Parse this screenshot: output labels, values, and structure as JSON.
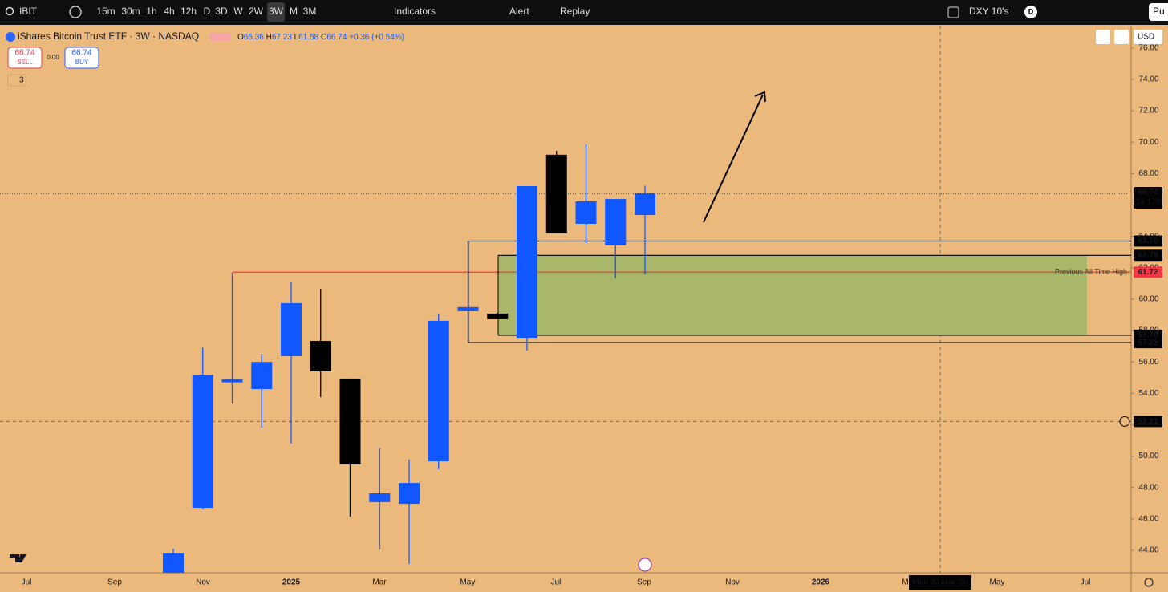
{
  "toolbar": {
    "symbol": "IBIT",
    "intervals": [
      "15m",
      "30m",
      "1h",
      "4h",
      "12h",
      "D",
      "3D",
      "W",
      "2W",
      "3W",
      "M",
      "3M"
    ],
    "indicators": "Indicators",
    "alert": "Alert",
    "replay": "Replay",
    "compare": "DXY 10's",
    "avatar": "D",
    "publish": "Pu"
  },
  "legend": {
    "title": "iShares Bitcoin Trust ETF · 3W · NASDAQ",
    "open_label": "O",
    "high_label": "H",
    "low_label": "L",
    "close_label": "C",
    "change": "+0.36 (+0.54%)",
    "indicator_count": "3"
  },
  "trade": {
    "sell_price": "66.74",
    "sell": "SELL",
    "spread": "0.00",
    "buy_price": "66.74",
    "buy": "BUY"
  },
  "currency": "USD",
  "chart_data": {
    "type": "candlestick",
    "categories": [
      null,
      null,
      null,
      null,
      null,
      null,
      null,
      null,
      null,
      null,
      null,
      null,
      null,
      null,
      null,
      null,
      null
    ],
    "open": [
      42.0,
      46.71,
      54.7,
      54.27,
      56.37,
      57.34,
      54.94,
      47.07,
      46.96,
      49.67,
      59.23,
      59.08,
      57.54,
      69.2,
      64.8,
      63.42,
      65.36
    ],
    "high": [
      44.1,
      56.93,
      61.68,
      56.52,
      61.07,
      60.66,
      54.94,
      50.54,
      49.78,
      59.03,
      63.68,
      59.13,
      67.2,
      69.45,
      69.86,
      66.38,
      67.23
    ],
    "low": [
      41.5,
      46.61,
      53.35,
      51.82,
      50.8,
      53.76,
      46.15,
      44.05,
      43.13,
      49.16,
      57.34,
      58.72,
      56.73,
      64.19,
      63.57,
      61.33,
      61.58
    ],
    "close": [
      43.8,
      55.19,
      54.9,
      56.0,
      59.74,
      55.4,
      49.47,
      47.63,
      48.29,
      58.62,
      59.49,
      58.72,
      67.2,
      64.19,
      66.23,
      66.38,
      66.74
    ],
    "up_color": "#1157ff",
    "down_color": "#000000",
    "ylim": [
      42.57,
      77.42
    ],
    "yticks": [
      {
        "value": 44,
        "label": "44.00"
      },
      {
        "value": 46,
        "label": "46.00"
      },
      {
        "value": 48,
        "label": "48.00"
      },
      {
        "value": 50,
        "label": "50.00"
      },
      {
        "value": 52,
        "label": "52.00"
      },
      {
        "value": 54,
        "label": "54.00"
      },
      {
        "value": 56,
        "label": "56.00"
      },
      {
        "value": 58,
        "label": "58.00"
      },
      {
        "value": 60,
        "label": "60.00"
      },
      {
        "value": 62,
        "label": "62.00"
      },
      {
        "value": 64,
        "label": "64.00"
      },
      {
        "value": 66,
        "label": "66.00"
      },
      {
        "value": 68,
        "label": "68.00"
      },
      {
        "value": 70,
        "label": "70.00"
      },
      {
        "value": 72,
        "label": "72.00"
      },
      {
        "value": 74,
        "label": "74.00"
      },
      {
        "value": 76,
        "label": "76.00"
      }
    ],
    "x_labels": [
      "Jul",
      "Sep",
      "Nov",
      "2025",
      "Mar",
      "May",
      "Jul",
      "Sep",
      "Nov",
      "2026",
      "Mar",
      "May",
      "Jul"
    ],
    "crosshair_date": "Mon 30 Mar '26",
    "current_price": {
      "value": 66.74,
      "label": "66.74",
      "countdown": "1d 17h"
    },
    "levels": [
      {
        "value": 63.7,
        "label": "63.70",
        "color": "#000000"
      },
      {
        "value": 62.79,
        "label": "62.79",
        "color": "#000000"
      },
      {
        "value": 61.72,
        "label": "61.72",
        "color": "#f23645"
      },
      {
        "value": 57.7,
        "label": "57.70",
        "color": "#000000"
      },
      {
        "value": 57.23,
        "label": "57.23",
        "color": "#000000"
      }
    ],
    "level_annotation": "Previous All Time High",
    "zone_color": "#a9b76b",
    "crosshair_price": {
      "value": 52.21,
      "label": "52.21"
    }
  }
}
